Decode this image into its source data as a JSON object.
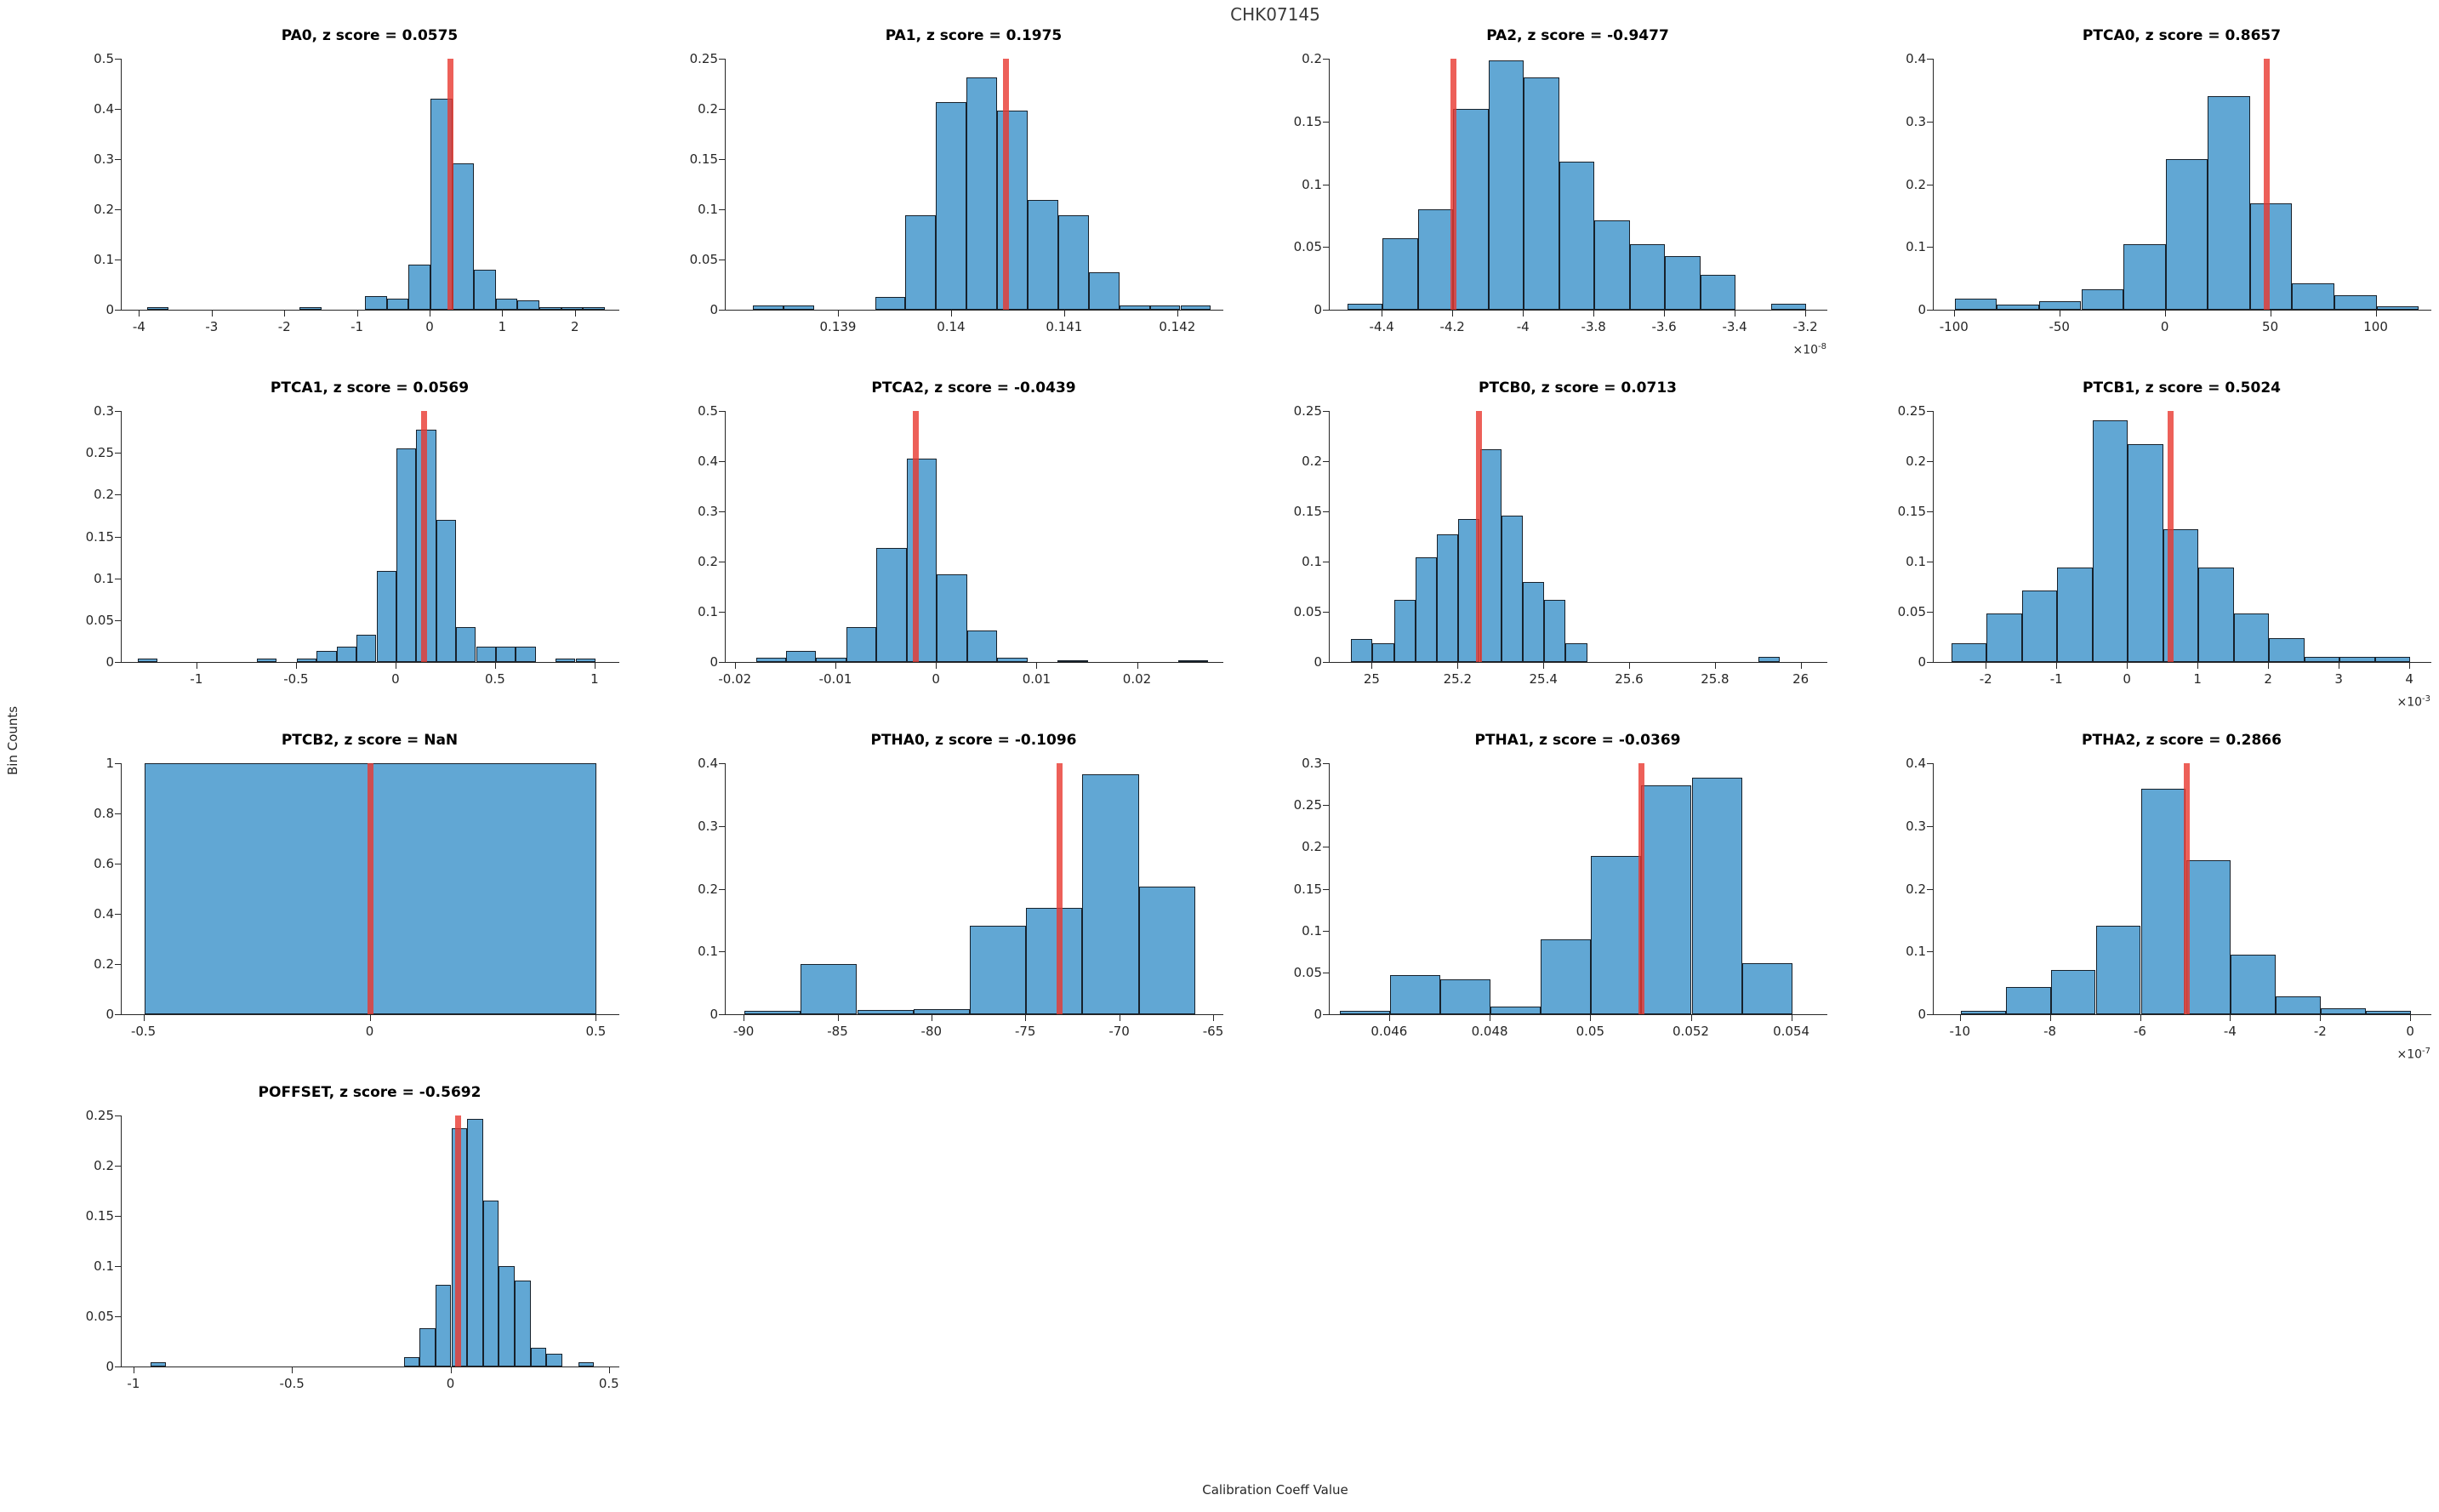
{
  "figure": {
    "title": "CHK07145",
    "xlabel": "Calibration Coeff Value",
    "ylabel": "Bin Counts"
  },
  "colors": {
    "bar_fill": "#61a7d4",
    "bar_edge": "#17212b",
    "red_line": "#e8382f",
    "red_line_opacity": 0.8,
    "axis": "#262626",
    "subplot_title": "#000000",
    "figure_title": "#3a3a3a"
  },
  "chart_data": [
    {
      "type": "bar",
      "name": "PA0",
      "title": "PA0, z score = 0.0575",
      "z_score": "0.0575",
      "xlim": [
        -4.25,
        2.6
      ],
      "ylim": [
        0,
        0.5
      ],
      "xticks": [
        -4,
        -3,
        -2,
        -1,
        0,
        1,
        2
      ],
      "xtick_labels": [
        "-4",
        "-3",
        "-2",
        "-1",
        "0",
        "1",
        "2"
      ],
      "yticks": [
        0,
        0.1,
        0.2,
        0.3,
        0.4,
        0.5
      ],
      "ytick_labels": [
        "0",
        "0.1",
        "0.2",
        "0.3",
        "0.4",
        "0.5"
      ],
      "exp": null,
      "red_line_x": 0.28,
      "bins": [
        [
          -3.9,
          -3.6,
          0.005
        ],
        [
          -1.8,
          -1.5,
          0.005
        ],
        [
          -0.9,
          -0.6,
          0.027
        ],
        [
          -0.6,
          -0.3,
          0.022
        ],
        [
          -0.3,
          0,
          0.09
        ],
        [
          0,
          0.3,
          0.42
        ],
        [
          0.3,
          0.6,
          0.292
        ],
        [
          0.6,
          0.9,
          0.08
        ],
        [
          0.9,
          1.2,
          0.022
        ],
        [
          1.2,
          1.5,
          0.019
        ],
        [
          1.5,
          1.8,
          0.005
        ],
        [
          1.8,
          2.1,
          0.005
        ],
        [
          2.1,
          2.4,
          0.005
        ]
      ]
    },
    {
      "type": "bar",
      "name": "PA1",
      "title": "PA1, z score = 0.1975",
      "z_score": "0.1975",
      "xlim": [
        0.138,
        0.1424
      ],
      "ylim": [
        0,
        0.25
      ],
      "xticks": [
        0.139,
        0.14,
        0.141,
        0.142
      ],
      "xtick_labels": [
        "0.139",
        "0.14",
        "0.141",
        "0.142"
      ],
      "yticks": [
        0,
        0.05,
        0.1,
        0.15,
        0.2,
        0.25
      ],
      "ytick_labels": [
        "0",
        "0.05",
        "0.1",
        "0.15",
        "0.2",
        "0.25"
      ],
      "exp": null,
      "red_line_x": 0.14048,
      "bins": [
        [
          0.13824,
          0.13851,
          0.004
        ],
        [
          0.13851,
          0.13878,
          0.004
        ],
        [
          0.13932,
          0.13959,
          0.013
        ],
        [
          0.13959,
          0.13986,
          0.094
        ],
        [
          0.13986,
          0.14013,
          0.207
        ],
        [
          0.14013,
          0.1404,
          0.231
        ],
        [
          0.1404,
          0.14067,
          0.198
        ],
        [
          0.14067,
          0.14094,
          0.109
        ],
        [
          0.14094,
          0.14121,
          0.094
        ],
        [
          0.14121,
          0.14148,
          0.037
        ],
        [
          0.14148,
          0.14175,
          0.004
        ],
        [
          0.14175,
          0.14202,
          0.004
        ],
        [
          0.14202,
          0.14229,
          0.004
        ]
      ]
    },
    {
      "type": "bar",
      "name": "PA2",
      "title": "PA2, z score = -0.9477",
      "z_score": "-0.9477",
      "xlim": [
        -4.55,
        -3.14
      ],
      "ylim": [
        0,
        0.2
      ],
      "xticks": [
        -4.4,
        -4.2,
        -4,
        -3.8,
        -3.6,
        -3.4,
        -3.2
      ],
      "xtick_labels": [
        "-4.4",
        "-4.2",
        "-4",
        "-3.8",
        "-3.6",
        "-3.4",
        "-3.2"
      ],
      "yticks": [
        0,
        0.05,
        0.1,
        0.15,
        0.2
      ],
      "ytick_labels": [
        "0",
        "0.05",
        "0.1",
        "0.15",
        "0.2"
      ],
      "exp": "-8",
      "red_line_x": -4.2,
      "bins": [
        [
          -4.5,
          -4.4,
          0.005
        ],
        [
          -4.4,
          -4.3,
          0.057
        ],
        [
          -4.3,
          -4.2,
          0.08
        ],
        [
          -4.2,
          -4.1,
          0.16
        ],
        [
          -4.1,
          -4,
          0.199
        ],
        [
          -4,
          -3.9,
          0.185
        ],
        [
          -3.9,
          -3.8,
          0.118
        ],
        [
          -3.8,
          -3.7,
          0.071
        ],
        [
          -3.7,
          -3.6,
          0.052
        ],
        [
          -3.6,
          -3.5,
          0.043
        ],
        [
          -3.5,
          -3.4,
          0.028
        ],
        [
          -3.3,
          -3.2,
          0.005
        ]
      ]
    },
    {
      "type": "bar",
      "name": "PTCA0",
      "title": "PTCA0, z score = 0.8657",
      "z_score": "0.8657",
      "xlim": [
        -110,
        126
      ],
      "ylim": [
        0,
        0.4
      ],
      "xticks": [
        -100,
        -50,
        0,
        50,
        100
      ],
      "xtick_labels": [
        "-100",
        "-50",
        "0",
        "50",
        "100"
      ],
      "yticks": [
        0,
        0.1,
        0.2,
        0.3,
        0.4
      ],
      "ytick_labels": [
        "0",
        "0.1",
        "0.2",
        "0.3",
        "0.4"
      ],
      "exp": null,
      "red_line_x": 48,
      "bins": [
        [
          -100,
          -80,
          0.018
        ],
        [
          -80,
          -60,
          0.008
        ],
        [
          -60,
          -40,
          0.013
        ],
        [
          -40,
          -20,
          0.032
        ],
        [
          -20,
          0,
          0.104
        ],
        [
          0,
          20,
          0.24
        ],
        [
          20,
          40,
          0.34
        ],
        [
          40,
          60,
          0.17
        ],
        [
          60,
          80,
          0.042
        ],
        [
          80,
          100,
          0.023
        ],
        [
          100,
          120,
          0.005
        ]
      ]
    },
    {
      "type": "bar",
      "name": "PTCA1",
      "title": "PTCA1, z score = 0.0569",
      "z_score": "0.0569",
      "xlim": [
        -1.38,
        1.12
      ],
      "ylim": [
        0,
        0.3
      ],
      "xticks": [
        -1,
        -0.5,
        0,
        0.5,
        1
      ],
      "xtick_labels": [
        "-1",
        "-0.5",
        "0",
        "0.5",
        "1"
      ],
      "yticks": [
        0,
        0.05,
        0.1,
        0.15,
        0.2,
        0.25,
        0.3
      ],
      "ytick_labels": [
        "0",
        "0.05",
        "0.1",
        "0.15",
        "0.2",
        "0.25",
        "0.3"
      ],
      "exp": null,
      "red_line_x": 0.14,
      "bins": [
        [
          -1.3,
          -1.2,
          0.004
        ],
        [
          -0.7,
          -0.6,
          0.004
        ],
        [
          -0.5,
          -0.4,
          0.004
        ],
        [
          -0.4,
          -0.3,
          0.013
        ],
        [
          -0.3,
          -0.2,
          0.018
        ],
        [
          -0.2,
          -0.1,
          0.033
        ],
        [
          -0.1,
          0,
          0.109
        ],
        [
          0,
          0.1,
          0.255
        ],
        [
          0.1,
          0.2,
          0.278
        ],
        [
          0.2,
          0.3,
          0.17
        ],
        [
          0.3,
          0.4,
          0.042
        ],
        [
          0.4,
          0.5,
          0.018
        ],
        [
          0.5,
          0.6,
          0.018
        ],
        [
          0.6,
          0.7,
          0.018
        ],
        [
          0.8,
          0.9,
          0.004
        ],
        [
          0.9,
          1,
          0.004
        ]
      ]
    },
    {
      "type": "bar",
      "name": "PTCA2",
      "title": "PTCA2, z score = -0.0439",
      "z_score": "-0.0439",
      "xlim": [
        -0.021,
        0.0285
      ],
      "ylim": [
        0,
        0.5
      ],
      "xticks": [
        -0.02,
        -0.01,
        0,
        0.01,
        0.02
      ],
      "xtick_labels": [
        "-0.02",
        "-0.01",
        "0",
        "0.01",
        "0.02"
      ],
      "yticks": [
        0,
        0.1,
        0.2,
        0.3,
        0.4,
        0.5
      ],
      "ytick_labels": [
        "0",
        "0.1",
        "0.2",
        "0.3",
        "0.4",
        "0.5"
      ],
      "exp": null,
      "red_line_x": -0.0021,
      "bins": [
        [
          -0.018,
          -0.015,
          0.008
        ],
        [
          -0.015,
          -0.012,
          0.022
        ],
        [
          -0.012,
          -0.009,
          0.008
        ],
        [
          -0.009,
          -0.006,
          0.07
        ],
        [
          -0.006,
          -0.003,
          0.228
        ],
        [
          -0.003,
          0,
          0.405
        ],
        [
          0,
          0.003,
          0.174
        ],
        [
          0.003,
          0.006,
          0.062
        ],
        [
          0.006,
          0.009,
          0.009
        ],
        [
          0.012,
          0.015,
          0.004
        ],
        [
          0.024,
          0.027,
          0.004
        ]
      ]
    },
    {
      "type": "bar",
      "name": "PTCB0",
      "title": "PTCB0, z score = 0.0713",
      "z_score": "0.0713",
      "xlim": [
        24.9,
        26.06
      ],
      "ylim": [
        0,
        0.25
      ],
      "xticks": [
        25,
        25.2,
        25.4,
        25.6,
        25.8,
        26
      ],
      "xtick_labels": [
        "25",
        "25.2",
        "25.4",
        "25.6",
        "25.8",
        "26"
      ],
      "yticks": [
        0,
        0.05,
        0.1,
        0.15,
        0.2,
        0.25
      ],
      "ytick_labels": [
        "0",
        "0.05",
        "0.1",
        "0.15",
        "0.2",
        "0.25"
      ],
      "exp": null,
      "red_line_x": 25.248,
      "bins": [
        [
          24.95,
          25,
          0.023
        ],
        [
          25,
          25.05,
          0.019
        ],
        [
          25.05,
          25.1,
          0.062
        ],
        [
          25.1,
          25.15,
          0.104
        ],
        [
          25.15,
          25.2,
          0.127
        ],
        [
          25.2,
          25.25,
          0.142
        ],
        [
          25.25,
          25.3,
          0.212
        ],
        [
          25.3,
          25.35,
          0.146
        ],
        [
          25.35,
          25.4,
          0.08
        ],
        [
          25.4,
          25.45,
          0.062
        ],
        [
          25.45,
          25.5,
          0.019
        ],
        [
          25.9,
          25.95,
          0.005
        ]
      ]
    },
    {
      "type": "bar",
      "name": "PTCB1",
      "title": "PTCB1, z score = 0.5024",
      "z_score": "0.5024",
      "xlim": [
        -2.75,
        4.3
      ],
      "ylim": [
        0,
        0.25
      ],
      "xticks": [
        -2,
        -1,
        0,
        1,
        2,
        3,
        4
      ],
      "xtick_labels": [
        "-2",
        "-1",
        "0",
        "1",
        "2",
        "3",
        "4"
      ],
      "yticks": [
        0,
        0.05,
        0.1,
        0.15,
        0.2,
        0.25
      ],
      "ytick_labels": [
        "0",
        "0.05",
        "0.1",
        "0.15",
        "0.2",
        "0.25"
      ],
      "exp": "-3",
      "red_line_x": 0.6,
      "bins": [
        [
          -2.5,
          -2,
          0.019
        ],
        [
          -2,
          -1.5,
          0.048
        ],
        [
          -1.5,
          -1,
          0.071
        ],
        [
          -1,
          -0.5,
          0.094
        ],
        [
          -0.5,
          0,
          0.241
        ],
        [
          0,
          0.5,
          0.217
        ],
        [
          0.5,
          1,
          0.132
        ],
        [
          1,
          1.5,
          0.094
        ],
        [
          1.5,
          2,
          0.048
        ],
        [
          2,
          2.5,
          0.024
        ],
        [
          2.5,
          3,
          0.005
        ],
        [
          3,
          3.5,
          0.005
        ],
        [
          3.5,
          4,
          0.005
        ]
      ]
    },
    {
      "type": "bar",
      "name": "PTCB2",
      "title": "PTCB2, z score = NaN",
      "z_score": "NaN",
      "xlim": [
        -0.55,
        0.55
      ],
      "ylim": [
        0,
        1
      ],
      "xticks": [
        -0.5,
        0,
        0.5
      ],
      "xtick_labels": [
        "-0.5",
        "0",
        "0.5"
      ],
      "yticks": [
        0,
        0.2,
        0.4,
        0.6,
        0.8,
        1
      ],
      "ytick_labels": [
        "0",
        "0.2",
        "0.4",
        "0.6",
        "0.8",
        "1"
      ],
      "exp": null,
      "red_line_x": 0,
      "bins": [
        [
          -0.5,
          0.5,
          1
        ]
      ]
    },
    {
      "type": "bar",
      "name": "PTHA0",
      "title": "PTHA0, z score = -0.1096",
      "z_score": "-0.1096",
      "xlim": [
        -91,
        -64.5
      ],
      "ylim": [
        0,
        0.4
      ],
      "xticks": [
        -90,
        -85,
        -80,
        -75,
        -70,
        -65
      ],
      "xtick_labels": [
        "-90",
        "-85",
        "-80",
        "-75",
        "-70",
        "-65"
      ],
      "yticks": [
        0,
        0.1,
        0.2,
        0.3,
        0.4
      ],
      "ytick_labels": [
        "0",
        "0.1",
        "0.2",
        "0.3",
        "0.4"
      ],
      "exp": null,
      "red_line_x": -73.2,
      "bins": [
        [
          -90,
          -87,
          0.005
        ],
        [
          -87,
          -84,
          0.08
        ],
        [
          -84,
          -81,
          0.007
        ],
        [
          -81,
          -78,
          0.008
        ],
        [
          -78,
          -75,
          0.141
        ],
        [
          -75,
          -72,
          0.17
        ],
        [
          -72,
          -69,
          0.383
        ],
        [
          -69,
          -66,
          0.203
        ]
      ]
    },
    {
      "type": "bar",
      "name": "PTHA1",
      "title": "PTHA1, z score = -0.0369",
      "z_score": "-0.0369",
      "xlim": [
        0.0448,
        0.0547
      ],
      "ylim": [
        0,
        0.3
      ],
      "xticks": [
        0.046,
        0.048,
        0.05,
        0.052,
        0.054
      ],
      "xtick_labels": [
        "0.046",
        "0.048",
        "0.05",
        "0.052",
        "0.054"
      ],
      "yticks": [
        0,
        0.05,
        0.1,
        0.15,
        0.2,
        0.25,
        0.3
      ],
      "ytick_labels": [
        "0",
        "0.05",
        "0.1",
        "0.15",
        "0.2",
        "0.25",
        "0.3"
      ],
      "exp": null,
      "red_line_x": 0.051,
      "bins": [
        [
          0.045,
          0.046,
          0.004
        ],
        [
          0.046,
          0.047,
          0.047
        ],
        [
          0.047,
          0.048,
          0.042
        ],
        [
          0.048,
          0.049,
          0.009
        ],
        [
          0.049,
          0.05,
          0.09
        ],
        [
          0.05,
          0.051,
          0.189
        ],
        [
          0.051,
          0.052,
          0.274
        ],
        [
          0.052,
          0.053,
          0.283
        ],
        [
          0.053,
          0.054,
          0.061
        ]
      ]
    },
    {
      "type": "bar",
      "name": "PTHA2",
      "title": "PTHA2, z score = 0.2866",
      "z_score": "0.2866",
      "xlim": [
        -10.6,
        0.45
      ],
      "ylim": [
        0,
        0.4
      ],
      "xticks": [
        -10,
        -8,
        -6,
        -4,
        -2,
        0
      ],
      "xtick_labels": [
        "-10",
        "-8",
        "-6",
        "-4",
        "-2",
        "0"
      ],
      "yticks": [
        0,
        0.1,
        0.2,
        0.3,
        0.4
      ],
      "ytick_labels": [
        "0",
        "0.1",
        "0.2",
        "0.3",
        "0.4"
      ],
      "exp": "-7",
      "red_line_x": -4.98,
      "bins": [
        [
          -10,
          -9,
          0.005
        ],
        [
          -9,
          -8,
          0.043
        ],
        [
          -8,
          -7,
          0.071
        ],
        [
          -7,
          -6,
          0.141
        ],
        [
          -6,
          -5,
          0.359
        ],
        [
          -5,
          -4,
          0.245
        ],
        [
          -4,
          -3,
          0.095
        ],
        [
          -3,
          -2,
          0.028
        ],
        [
          -2,
          -1,
          0.009
        ],
        [
          -1,
          0,
          0.005
        ]
      ]
    },
    {
      "type": "bar",
      "name": "POFFSET",
      "title": "POFFSET, z score = -0.5692",
      "z_score": "-0.5692",
      "xlim": [
        -1.04,
        0.53
      ],
      "ylim": [
        0,
        0.25
      ],
      "xticks": [
        -1,
        -0.5,
        0,
        0.5
      ],
      "xtick_labels": [
        "-1",
        "-0.5",
        "0",
        "0.5"
      ],
      "yticks": [
        0,
        0.05,
        0.1,
        0.15,
        0.2,
        0.25
      ],
      "ytick_labels": [
        "0",
        "0.05",
        "0.1",
        "0.15",
        "0.2",
        "0.25"
      ],
      "exp": null,
      "red_line_x": 0.02,
      "bins": [
        [
          -0.95,
          -0.9,
          0.004
        ],
        [
          -0.15,
          -0.1,
          0.009
        ],
        [
          -0.1,
          -0.05,
          0.038
        ],
        [
          -0.05,
          0,
          0.081
        ],
        [
          0,
          0.05,
          0.237
        ],
        [
          0.05,
          0.1,
          0.247
        ],
        [
          0.1,
          0.15,
          0.165
        ],
        [
          0.15,
          0.2,
          0.1
        ],
        [
          0.2,
          0.25,
          0.086
        ],
        [
          0.25,
          0.3,
          0.019
        ],
        [
          0.3,
          0.35,
          0.013
        ],
        [
          0.4,
          0.45,
          0.004
        ]
      ]
    }
  ]
}
